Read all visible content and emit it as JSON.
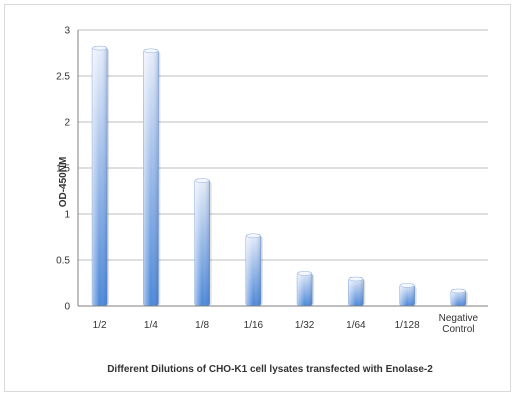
{
  "chart_data": {
    "type": "bar",
    "title": "",
    "xlabel": "Different Dilutions of CHO-K1 cell lysates transfected with Enolase-2",
    "ylabel": "OD-450NM",
    "categories": [
      [
        "1/2"
      ],
      [
        "1/4"
      ],
      [
        "1/8"
      ],
      [
        "1/16"
      ],
      [
        "1/32"
      ],
      [
        "1/64"
      ],
      [
        "1/128"
      ],
      [
        "Negative",
        "Control"
      ]
    ],
    "values": [
      2.82,
      2.79,
      1.38,
      0.78,
      0.37,
      0.31,
      0.24,
      0.18
    ],
    "yticks": [
      "0",
      "0.5",
      "1",
      "1.5",
      "2",
      "2.5",
      "3"
    ],
    "ylim": [
      0,
      3
    ],
    "grid": true,
    "legend": "none",
    "colors": {
      "bar_light": "#e8eefa",
      "bar_mid": "#9fbde9",
      "bar_dark": "#4a86d8",
      "grid": "#bfbfbf",
      "axis": "#7f7f7f"
    }
  }
}
